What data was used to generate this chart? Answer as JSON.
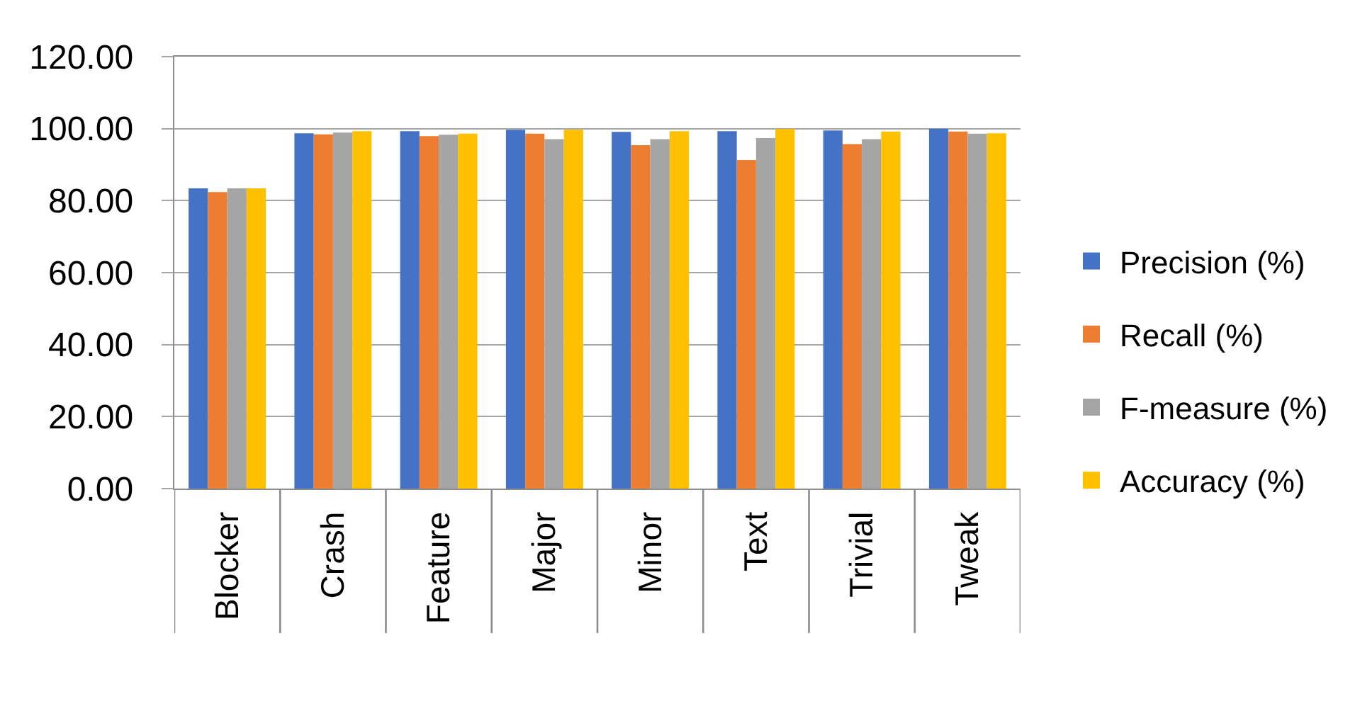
{
  "chart_data": {
    "type": "bar",
    "categories": [
      "Blocker",
      "Crash",
      "Feature",
      "Major",
      "Minor",
      "Text",
      "Trivial",
      "Tweak"
    ],
    "series": [
      {
        "name": "Precision (%)",
        "color": "#4472c4",
        "values": [
          83.4,
          98.7,
          99.3,
          99.7,
          99.1,
          99.3,
          99.5,
          100.0
        ]
      },
      {
        "name": "Recall (%)",
        "color": "#ed7d31",
        "values": [
          82.4,
          98.4,
          97.9,
          98.6,
          95.4,
          91.3,
          95.7,
          99.2
        ]
      },
      {
        "name": "F-measure (%)",
        "color": "#a5a5a5",
        "values": [
          83.4,
          98.9,
          98.3,
          97.1,
          97.1,
          97.4,
          97.1,
          98.6
        ]
      },
      {
        "name": "Accuracy (%)",
        "color": "#ffc000",
        "values": [
          83.4,
          99.3,
          98.6,
          99.7,
          99.3,
          99.9,
          99.2,
          98.7
        ]
      }
    ],
    "ylim": [
      0,
      120
    ],
    "yticks": [
      {
        "value": 0,
        "label": "0.00"
      },
      {
        "value": 20,
        "label": "20.00"
      },
      {
        "value": 40,
        "label": "40.00"
      },
      {
        "value": 60,
        "label": "60.00"
      },
      {
        "value": 80,
        "label": "80.00"
      },
      {
        "value": 100,
        "label": "100.00"
      },
      {
        "value": 120,
        "label": "120.00"
      }
    ],
    "grid": "y",
    "legend": "right"
  }
}
